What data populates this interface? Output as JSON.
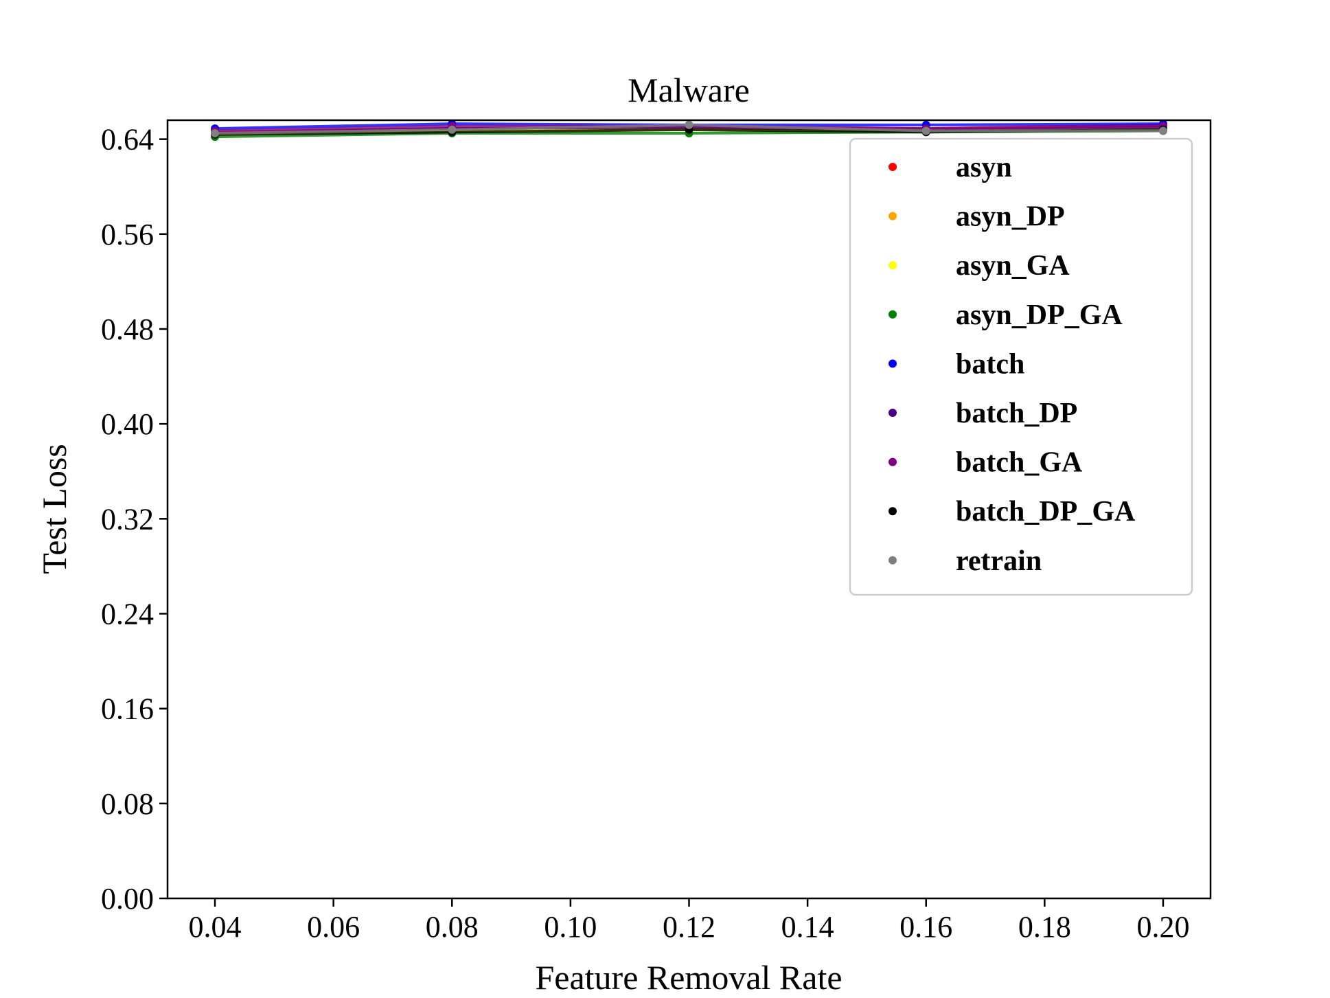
{
  "chart_data": {
    "type": "line",
    "title": "Malware",
    "xlabel": "Feature Removal Rate",
    "ylabel": "Test Loss",
    "x": [
      0.04,
      0.08,
      0.12,
      0.16,
      0.2
    ],
    "xlim": [
      0.032,
      0.208
    ],
    "ylim": [
      0.0,
      0.656
    ],
    "xticks": [
      "0.04",
      "0.06",
      "0.08",
      "0.10",
      "0.12",
      "0.14",
      "0.16",
      "0.18",
      "0.20"
    ],
    "yticks": [
      "0.00",
      "0.08",
      "0.16",
      "0.24",
      "0.32",
      "0.40",
      "0.48",
      "0.56",
      "0.64"
    ],
    "grid": false,
    "legend_position": "upper-right",
    "series": [
      {
        "name": "asyn",
        "color": "#ff0000",
        "values": [
          0.646,
          0.649,
          0.65,
          0.649,
          0.652
        ]
      },
      {
        "name": "asyn_DP",
        "color": "#ffa500",
        "values": [
          0.645,
          0.648,
          0.649,
          0.648,
          0.65
        ]
      },
      {
        "name": "asyn_GA",
        "color": "#ffff00",
        "values": [
          0.644,
          0.647,
          0.648,
          0.647,
          0.649
        ]
      },
      {
        "name": "asyn_DP_GA",
        "color": "#008000",
        "values": [
          0.642,
          0.645,
          0.645,
          0.646,
          0.647
        ]
      },
      {
        "name": "batch",
        "color": "#0000ff",
        "values": [
          0.649,
          0.653,
          0.652,
          0.652,
          0.653
        ]
      },
      {
        "name": "batch_DP",
        "color": "#4b0082",
        "values": [
          0.645,
          0.649,
          0.65,
          0.648,
          0.65
        ]
      },
      {
        "name": "batch_GA",
        "color": "#800080",
        "values": [
          0.647,
          0.651,
          0.651,
          0.649,
          0.651
        ]
      },
      {
        "name": "batch_DP_GA",
        "color": "#000000",
        "values": [
          0.644,
          0.646,
          0.648,
          0.646,
          0.648
        ]
      },
      {
        "name": "retrain",
        "color": "#808080",
        "values": [
          0.645,
          0.648,
          0.652,
          0.647,
          0.647
        ]
      }
    ]
  }
}
